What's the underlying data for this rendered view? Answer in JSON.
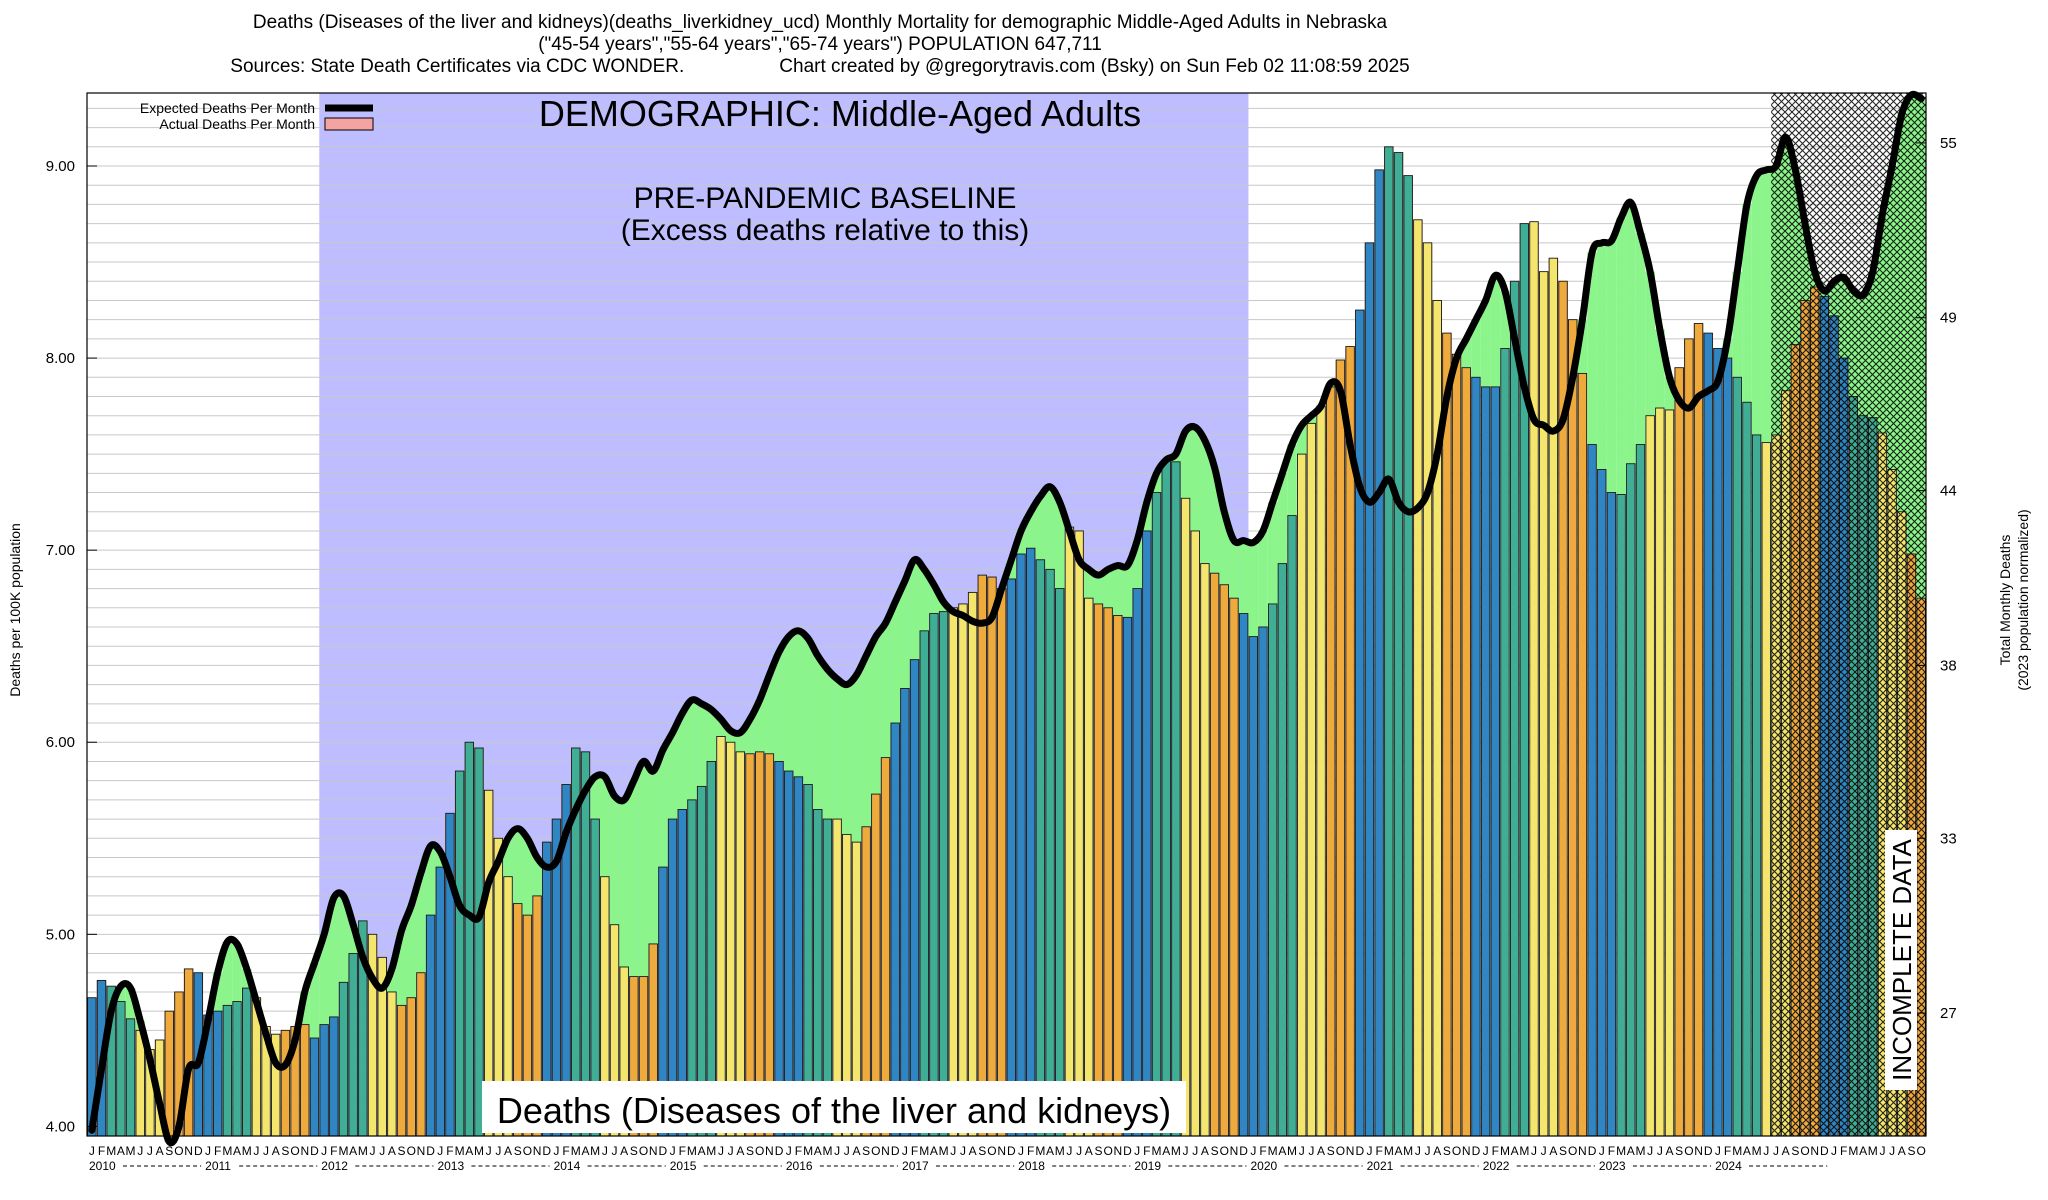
{
  "header": {
    "title": "Deaths (Diseases of the liver and kidneys)(deaths_liverkidney_ucd) Monthly Mortality for demographic Middle-Aged Adults in Nebraska",
    "subtitle": "(\"45-54 years\",\"55-64 years\",\"65-74 years\") POPULATION 647,711",
    "sources": "Sources: State Death Certificates via CDC WONDER.",
    "credit": "Chart created by @gregorytravis.com (Bsky) on Sun Feb 02 11:08:59 2025"
  },
  "annotations": {
    "demographic": "DEMOGRAPHIC: Middle-Aged Adults",
    "baseline_line1": "PRE-PANDEMIC BASELINE",
    "baseline_line2": "(Excess deaths relative to this)",
    "cause": "Deaths (Diseases of the liver and kidneys)",
    "incomplete": "INCOMPLETE DATA"
  },
  "legend": {
    "expected": "Expected Deaths Per Month",
    "actual": "Actual Deaths Per Month"
  },
  "chart_data": {
    "type": "bar",
    "ylabel_left": "Deaths per 100K population",
    "ylabel_right_line1": "Total Monthly Deaths",
    "ylabel_right_line2": "(2023 population normalized)",
    "ylim": [
      3.95,
      9.38
    ],
    "y_ticks_left": [
      "4.00",
      "5.00",
      "6.00",
      "7.00",
      "8.00",
      "9.00"
    ],
    "y_ticks_left_values": [
      4,
      5,
      6,
      7,
      8,
      9
    ],
    "y_ticks_right": [
      "27",
      "33",
      "38",
      "44",
      "49",
      "55"
    ],
    "y_ticks_right_values": [
      4.59,
      5.5,
      6.4,
      7.31,
      8.21,
      9.12
    ],
    "month_labels": [
      "J",
      "F",
      "M",
      "A",
      "M",
      "J",
      "J",
      "A",
      "S",
      "O",
      "N",
      "D"
    ],
    "year_labels": [
      "2010",
      "2011",
      "2012",
      "2013",
      "2014",
      "2015",
      "2016",
      "2017",
      "2018",
      "2019",
      "2020",
      "2021",
      "2022",
      "2023",
      "2024"
    ],
    "start": "2010-01",
    "baseline_period": [
      "2012-01",
      "2019-12"
    ],
    "incomplete_from": "2024-07",
    "colors": {
      "baseline_band": "#bdbdff",
      "expected_line": "#000000",
      "actual_fill": "#f4a3a3",
      "excess_fill": "#8bf58b",
      "incomplete_hatch": "#000000",
      "bar_winter": "#2f86c2",
      "bar_spring": "#3fae95",
      "bar_summer": "#f4e66c",
      "bar_autumn": "#eeaa3c"
    },
    "actual": [
      4.67,
      4.76,
      4.73,
      4.65,
      4.56,
      4.5,
      4.4,
      4.45,
      4.6,
      4.7,
      4.82,
      4.8,
      4.58,
      4.6,
      4.63,
      4.65,
      4.72,
      4.67,
      4.52,
      4.48,
      4.5,
      4.52,
      4.53,
      4.46,
      4.53,
      4.57,
      4.75,
      4.9,
      5.07,
      5.0,
      4.88,
      4.7,
      4.63,
      4.67,
      4.8,
      5.1,
      5.35,
      5.63,
      5.85,
      6.0,
      5.97,
      5.75,
      5.5,
      5.3,
      5.16,
      5.1,
      5.2,
      5.48,
      5.6,
      5.78,
      5.97,
      5.95,
      5.6,
      5.3,
      5.05,
      4.83,
      4.78,
      4.78,
      4.95,
      5.35,
      5.6,
      5.65,
      5.7,
      5.77,
      5.9,
      6.03,
      6.0,
      5.95,
      5.94,
      5.95,
      5.94,
      5.9,
      5.85,
      5.82,
      5.78,
      5.65,
      5.6,
      5.6,
      5.52,
      5.48,
      5.56,
      5.73,
      5.92,
      6.1,
      6.28,
      6.43,
      6.58,
      6.67,
      6.68,
      6.7,
      6.72,
      6.78,
      6.87,
      6.86,
      6.8,
      6.85,
      6.98,
      7.01,
      6.95,
      6.9,
      6.8,
      7.12,
      7.1,
      6.75,
      6.72,
      6.7,
      6.66,
      6.65,
      6.8,
      7.1,
      7.3,
      7.47,
      7.46,
      7.27,
      7.1,
      6.93,
      6.88,
      6.82,
      6.75,
      6.67,
      6.55,
      6.6,
      6.72,
      6.93,
      7.18,
      7.5,
      7.66,
      7.75,
      7.85,
      7.99,
      8.06,
      8.25,
      8.6,
      8.98,
      9.1,
      9.07,
      8.95,
      8.72,
      8.6,
      8.3,
      8.13,
      8.02,
      7.95,
      7.9,
      7.85,
      7.85,
      8.05,
      8.4,
      8.7,
      8.71,
      8.45,
      8.52,
      8.4,
      8.2,
      7.92,
      7.55,
      7.42,
      7.3,
      7.29,
      7.45,
      7.55,
      7.7,
      7.74,
      7.73,
      7.95,
      8.1,
      8.18,
      8.13,
      8.05,
      8.0,
      7.9,
      7.77,
      7.6,
      7.56,
      7.6,
      7.83,
      8.07,
      8.3,
      8.37,
      8.32,
      8.22,
      8.0,
      7.8,
      7.7,
      7.69,
      7.61,
      7.42,
      7.2,
      6.98,
      6.75
    ],
    "expected": [
      3.98,
      4.3,
      4.6,
      4.73,
      4.72,
      4.55,
      4.35,
      4.12,
      3.92,
      4.0,
      4.3,
      4.33,
      4.55,
      4.8,
      4.96,
      4.95,
      4.82,
      4.65,
      4.48,
      4.33,
      4.32,
      4.45,
      4.7,
      4.85,
      5.0,
      5.19,
      5.2,
      5.05,
      4.88,
      4.77,
      4.72,
      4.82,
      5.02,
      5.15,
      5.32,
      5.46,
      5.43,
      5.3,
      5.15,
      5.1,
      5.09,
      5.27,
      5.38,
      5.5,
      5.55,
      5.5,
      5.4,
      5.35,
      5.38,
      5.53,
      5.65,
      5.75,
      5.82,
      5.82,
      5.72,
      5.7,
      5.8,
      5.9,
      5.85,
      5.96,
      6.05,
      6.15,
      6.22,
      6.2,
      6.17,
      6.12,
      6.06,
      6.05,
      6.12,
      6.22,
      6.35,
      6.47,
      6.55,
      6.58,
      6.54,
      6.45,
      6.38,
      6.33,
      6.3,
      6.35,
      6.45,
      6.55,
      6.62,
      6.73,
      6.84,
      6.95,
      6.9,
      6.82,
      6.73,
      6.68,
      6.66,
      6.63,
      6.62,
      6.65,
      6.8,
      6.95,
      7.1,
      7.2,
      7.28,
      7.33,
      7.25,
      7.1,
      6.95,
      6.9,
      6.87,
      6.9,
      6.92,
      6.92,
      7.05,
      7.25,
      7.4,
      7.47,
      7.5,
      7.62,
      7.64,
      7.57,
      7.43,
      7.2,
      7.05,
      7.05,
      7.04,
      7.1,
      7.25,
      7.4,
      7.55,
      7.65,
      7.7,
      7.75,
      7.87,
      7.83,
      7.55,
      7.33,
      7.25,
      7.3,
      7.37,
      7.25,
      7.2,
      7.22,
      7.3,
      7.5,
      7.8,
      8.0,
      8.1,
      8.2,
      8.3,
      8.43,
      8.35,
      8.1,
      7.85,
      7.68,
      7.65,
      7.62,
      7.68,
      7.9,
      8.2,
      8.55,
      8.6,
      8.61,
      8.73,
      8.81,
      8.65,
      8.45,
      8.15,
      7.9,
      7.78,
      7.74,
      7.8,
      7.83,
      7.88,
      8.1,
      8.45,
      8.8,
      8.95,
      8.98,
      9.0,
      9.15,
      8.98,
      8.7,
      8.45,
      8.35,
      8.4,
      8.42,
      8.35,
      8.33,
      8.45,
      8.75,
      9.0,
      9.27,
      9.37,
      9.35
    ]
  }
}
